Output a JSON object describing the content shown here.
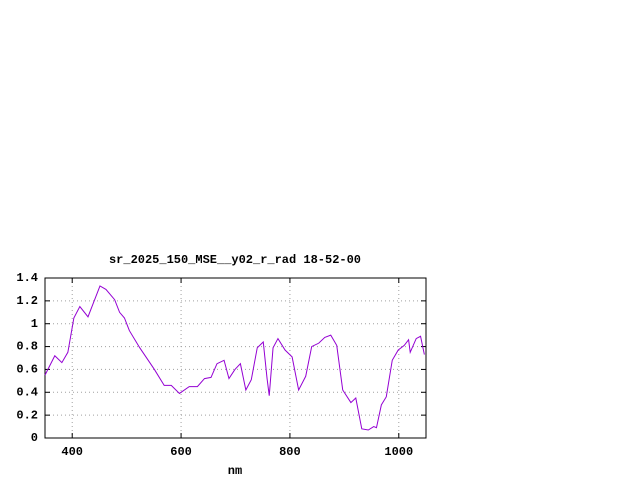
{
  "chart_data": {
    "type": "line",
    "title": "sr_2025_150_MSE__y02_r_rad 18-52-00",
    "xlabel": "nm",
    "xlim": [
      350,
      1050
    ],
    "ylim": [
      0,
      1.4
    ],
    "xticks": [
      400,
      600,
      800,
      1000
    ],
    "yticks": [
      0,
      0.2,
      0.4,
      0.6,
      0.8,
      1,
      1.2,
      1.4
    ],
    "grid": true,
    "series": [
      {
        "color": "#9400d3",
        "x": [
          350,
          368,
          381,
          392,
          403,
          414,
          429,
          451,
          462,
          478,
          487,
          496,
          505,
          524,
          551,
          569,
          582,
          597,
          615,
          630,
          643,
          655,
          666,
          679,
          688,
          699,
          709,
          719,
          729,
          740,
          751,
          758,
          762,
          769,
          778,
          791,
          804,
          816,
          829,
          840,
          853,
          864,
          875,
          886,
          897,
          912,
          921,
          932,
          944,
          954,
          959,
          968,
          977,
          988,
          999,
          1010,
          1018,
          1021,
          1032,
          1040,
          1047
        ],
        "values": [
          0.55,
          0.72,
          0.66,
          0.75,
          1.05,
          1.15,
          1.06,
          1.33,
          1.3,
          1.21,
          1.1,
          1.05,
          0.94,
          0.79,
          0.6,
          0.46,
          0.46,
          0.39,
          0.45,
          0.45,
          0.52,
          0.53,
          0.65,
          0.68,
          0.52,
          0.6,
          0.65,
          0.42,
          0.51,
          0.79,
          0.84,
          0.52,
          0.37,
          0.79,
          0.87,
          0.77,
          0.71,
          0.42,
          0.54,
          0.8,
          0.83,
          0.88,
          0.9,
          0.81,
          0.42,
          0.31,
          0.35,
          0.08,
          0.07,
          0.1,
          0.09,
          0.29,
          0.36,
          0.68,
          0.77,
          0.81,
          0.86,
          0.75,
          0.87,
          0.89,
          0.73
        ]
      }
    ]
  }
}
